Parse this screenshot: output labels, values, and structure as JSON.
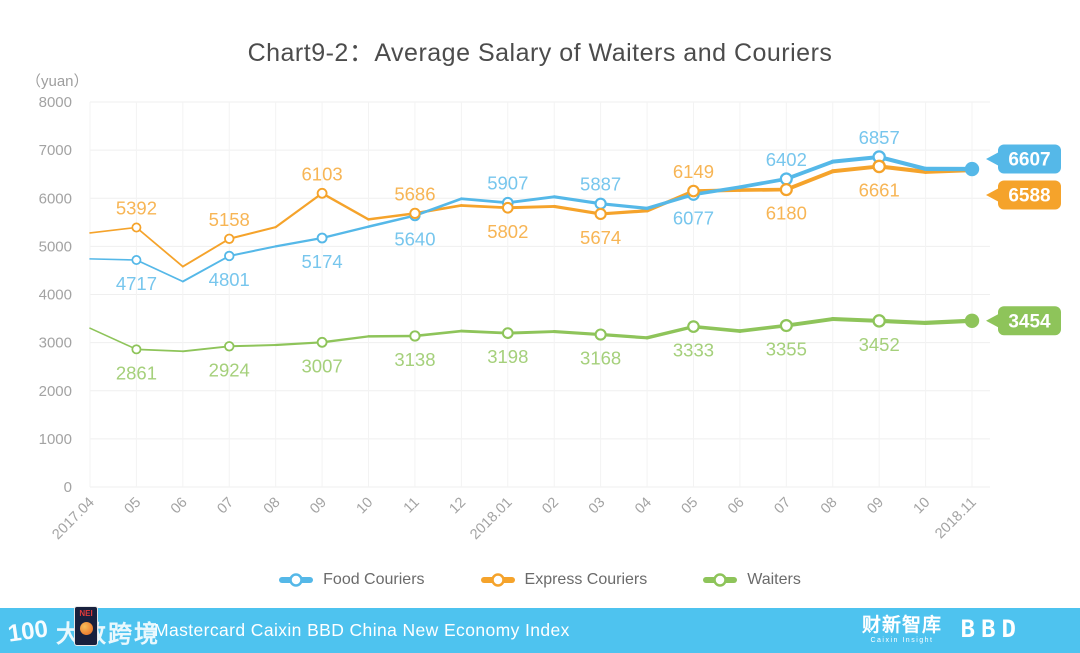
{
  "title": "Chart9-2：Average Salary of Waiters and Couriers",
  "y_axis_unit": "（yuan）",
  "colors": {
    "food_couriers": "#55B8E8",
    "express_couriers": "#F5A32B",
    "waiters": "#8EC45A",
    "axis_text": "#a3a3a3",
    "grid_line": "#efefef",
    "title_text": "#4c4c4c",
    "badge_text": "#ffffff",
    "footer_bar": "#4EC3EF"
  },
  "chart_data": {
    "type": "line",
    "title": "Chart9-2：Average Salary of Waiters and Couriers",
    "ylabel": "（yuan）",
    "xlabel": "",
    "ylim": [
      0,
      8000
    ],
    "y_ticks": [
      0,
      1000,
      2000,
      3000,
      4000,
      5000,
      6000,
      7000,
      8000
    ],
    "grid": true,
    "legend_position": "bottom",
    "x": [
      "2017.04",
      "05",
      "06",
      "07",
      "08",
      "09",
      "10",
      "11",
      "12",
      "2018.01",
      "02",
      "03",
      "04",
      "05",
      "06",
      "07",
      "08",
      "09",
      "10",
      "2018.11"
    ],
    "series": [
      {
        "name": "Food Couriers",
        "color": "#55B8E8",
        "values": [
          4740,
          4717,
          4270,
          4801,
          5000,
          5174,
          5410,
          5640,
          5990,
          5907,
          6030,
          5887,
          5790,
          6077,
          6230,
          6402,
          6760,
          6857,
          6610,
          6607
        ],
        "labeled_points": {
          "indices": [
            1,
            3,
            5,
            7,
            9,
            11,
            13,
            15,
            17
          ],
          "positions": [
            "below",
            "below",
            "below",
            "below",
            "above",
            "above",
            "below",
            "above",
            "above"
          ]
        },
        "end_dot": true,
        "end_badge": {
          "text": "6607",
          "offset_y": -10
        }
      },
      {
        "name": "Express Couriers",
        "color": "#F5A32B",
        "values": [
          5280,
          5392,
          4580,
          5158,
          5400,
          6103,
          5560,
          5686,
          5850,
          5802,
          5830,
          5674,
          5740,
          6149,
          6170,
          6180,
          6560,
          6661,
          6550,
          6588
        ],
        "labeled_points": {
          "indices": [
            1,
            3,
            5,
            7,
            9,
            11,
            13,
            15,
            17
          ],
          "positions": [
            "above",
            "above",
            "above",
            "above",
            "below",
            "below",
            "above",
            "below",
            "below"
          ]
        },
        "end_dot": false,
        "end_badge": {
          "text": "6588",
          "offset_y": 25
        }
      },
      {
        "name": "Waiters",
        "color": "#8EC45A",
        "values": [
          3300,
          2861,
          2820,
          2924,
          2950,
          3007,
          3130,
          3138,
          3240,
          3198,
          3230,
          3168,
          3100,
          3333,
          3240,
          3355,
          3490,
          3452,
          3410,
          3454
        ],
        "labeled_points": {
          "indices": [
            1,
            3,
            5,
            7,
            9,
            11,
            13,
            15,
            17
          ],
          "positions": [
            "below",
            "below",
            "below",
            "below",
            "below",
            "below",
            "below",
            "below",
            "below"
          ]
        },
        "end_dot": true,
        "end_badge": {
          "text": "3454",
          "offset_y": 0
        }
      }
    ]
  },
  "legend": {
    "items": [
      {
        "label": "Food Couriers",
        "color": "#55B8E8"
      },
      {
        "label": "Express Couriers",
        "color": "#F5A32B"
      },
      {
        "label": "Waiters",
        "color": "#8EC45A"
      }
    ]
  },
  "footer": {
    "brand_text": "Mastercard Caixin BBD China New Economy Index",
    "watermark": {
      "prefix": "100",
      "text": "大数跨境",
      "nei_icon_label": "NEI"
    },
    "logos": {
      "caixin": "财新智库",
      "caixin_sub": "Caixin Insight",
      "bbd": "BBD"
    }
  }
}
